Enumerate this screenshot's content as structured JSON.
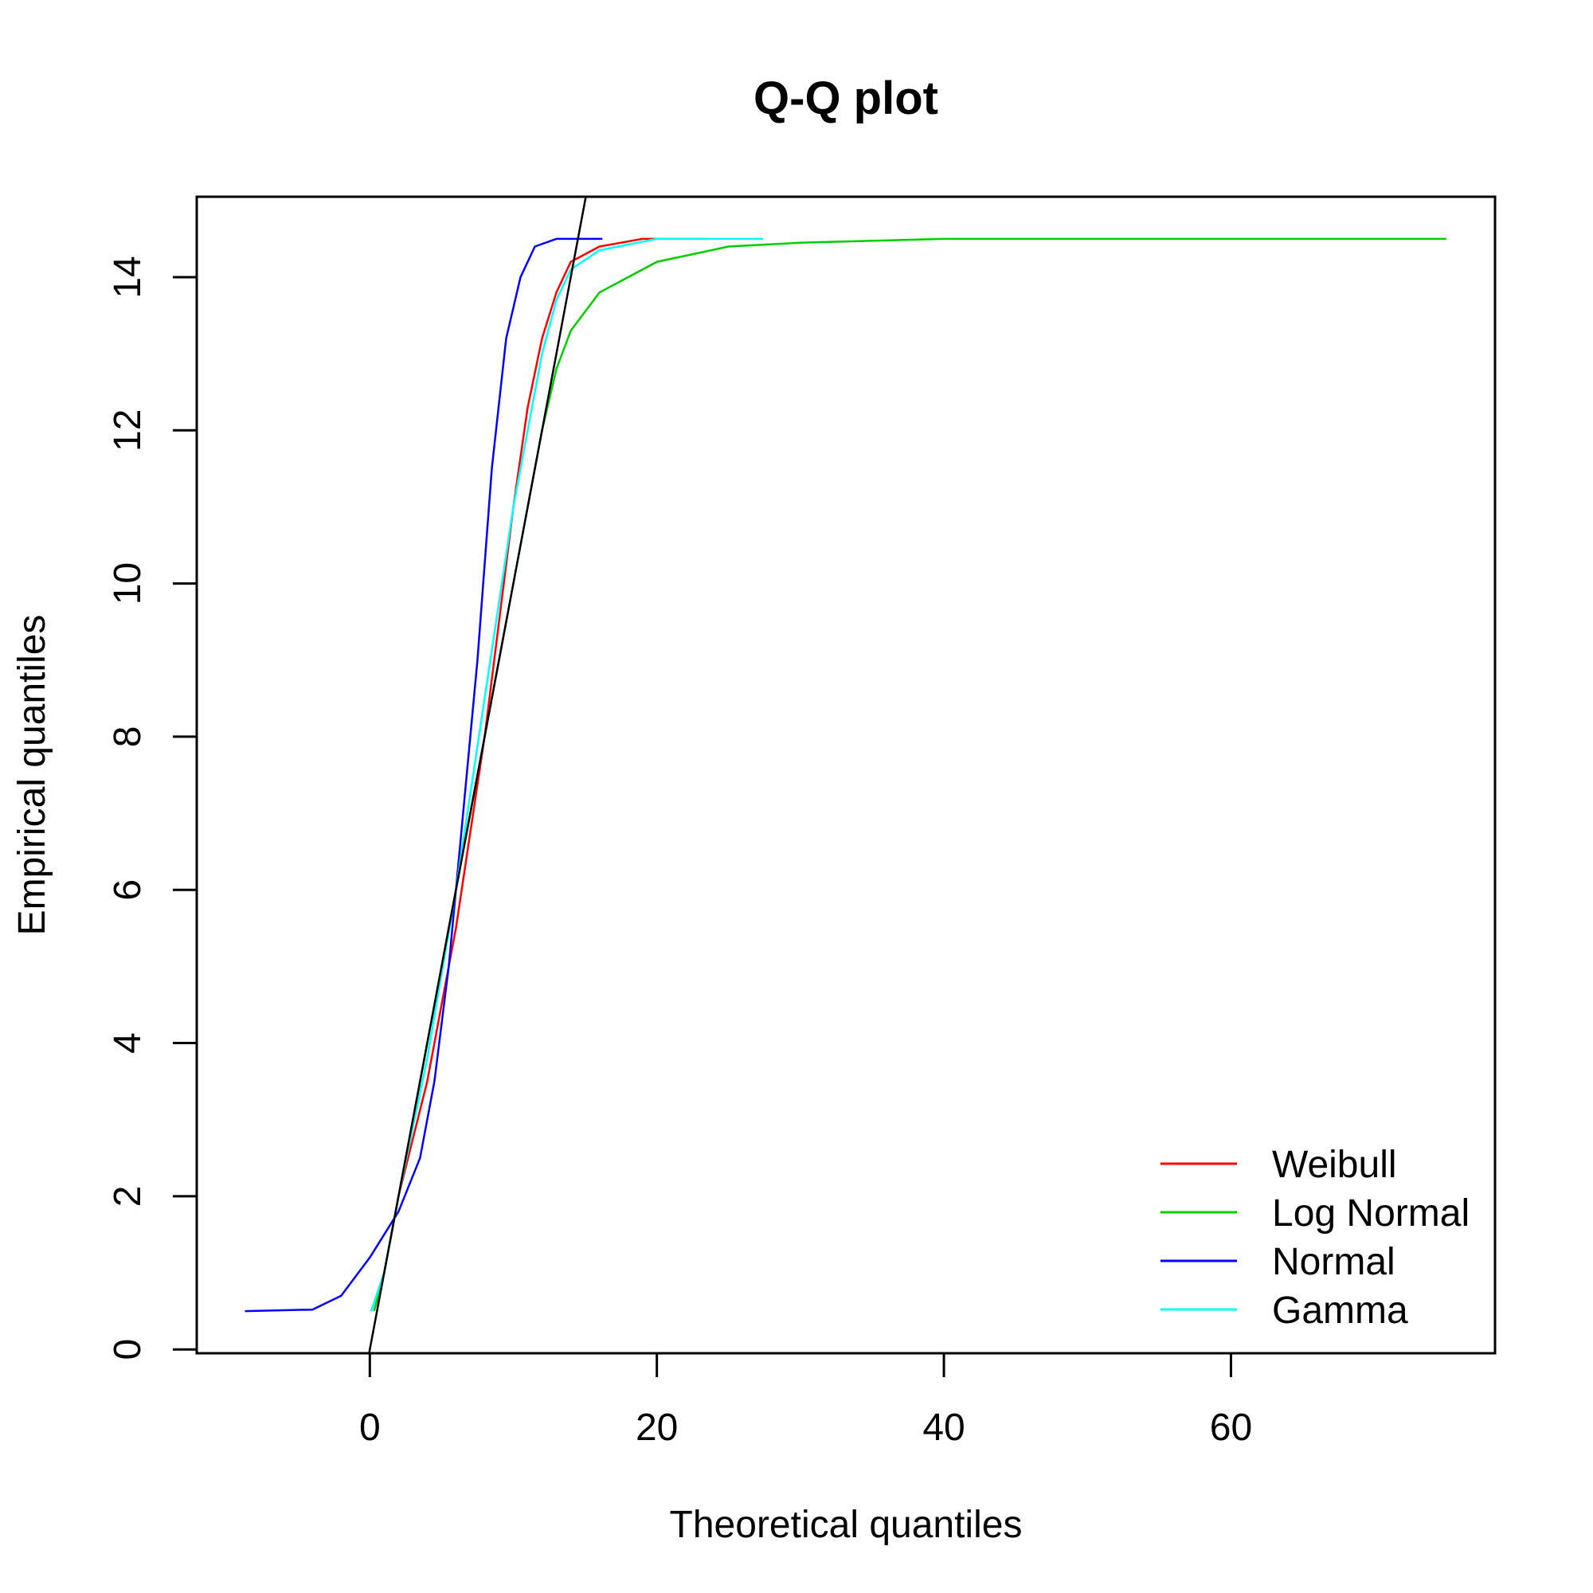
{
  "chart_data": {
    "type": "line",
    "title": "Q-Q plot",
    "xlabel": "Theoretical quantiles",
    "ylabel": "Empirical quantiles",
    "xlim": [
      -12.06,
      78.4
    ],
    "ylim": [
      -0.05,
      15.05
    ],
    "xticks": [
      0,
      20,
      40,
      60
    ],
    "yticks": [
      0,
      2,
      4,
      6,
      8,
      10,
      12,
      14
    ],
    "grid": false,
    "legend_position": "bottom-right",
    "reference_line": {
      "slope": 1,
      "intercept": 0,
      "color": "#000000"
    },
    "series": [
      {
        "name": "Weibull",
        "color": "#ff0000",
        "points": [
          [
            0.1,
            0.5
          ],
          [
            1,
            1
          ],
          [
            2,
            2
          ],
          [
            4,
            3.5
          ],
          [
            6,
            5.5
          ],
          [
            8,
            8
          ],
          [
            10,
            11
          ],
          [
            11,
            12.3
          ],
          [
            12,
            13.2
          ],
          [
            13,
            13.8
          ],
          [
            14,
            14.2
          ],
          [
            16,
            14.4
          ],
          [
            19,
            14.5
          ],
          [
            23.5,
            14.5
          ]
        ]
      },
      {
        "name": "Log Normal",
        "color": "#00cd00",
        "points": [
          [
            0.3,
            0.5
          ],
          [
            1,
            1
          ],
          [
            2,
            2
          ],
          [
            4,
            4
          ],
          [
            6,
            6
          ],
          [
            8,
            8
          ],
          [
            10,
            10
          ],
          [
            12,
            12
          ],
          [
            13,
            12.8
          ],
          [
            14,
            13.3
          ],
          [
            16,
            13.8
          ],
          [
            18,
            14.0
          ],
          [
            20,
            14.2
          ],
          [
            25,
            14.4
          ],
          [
            30,
            14.45
          ],
          [
            40,
            14.5
          ],
          [
            75,
            14.5
          ]
        ]
      },
      {
        "name": "Normal",
        "color": "#0000ff",
        "points": [
          [
            -8.7,
            0.5
          ],
          [
            -4,
            0.52
          ],
          [
            -2,
            0.7
          ],
          [
            0,
            1.2
          ],
          [
            2,
            1.8
          ],
          [
            3.5,
            2.5
          ],
          [
            4.5,
            3.5
          ],
          [
            5.5,
            5
          ],
          [
            6.5,
            7
          ],
          [
            7.5,
            9
          ],
          [
            8.5,
            11.5
          ],
          [
            9.5,
            13.2
          ],
          [
            10.5,
            14
          ],
          [
            11.5,
            14.4
          ],
          [
            13,
            14.5
          ],
          [
            16.2,
            14.5
          ]
        ]
      },
      {
        "name": "Gamma",
        "color": "#00ffff",
        "points": [
          [
            0.1,
            0.5
          ],
          [
            1,
            1
          ],
          [
            2,
            2
          ],
          [
            4,
            3.8
          ],
          [
            6,
            6
          ],
          [
            8,
            8.5
          ],
          [
            10,
            11
          ],
          [
            12,
            13
          ],
          [
            13,
            13.7
          ],
          [
            14,
            14.1
          ],
          [
            16,
            14.35
          ],
          [
            20,
            14.5
          ],
          [
            27.4,
            14.5
          ]
        ]
      }
    ]
  }
}
